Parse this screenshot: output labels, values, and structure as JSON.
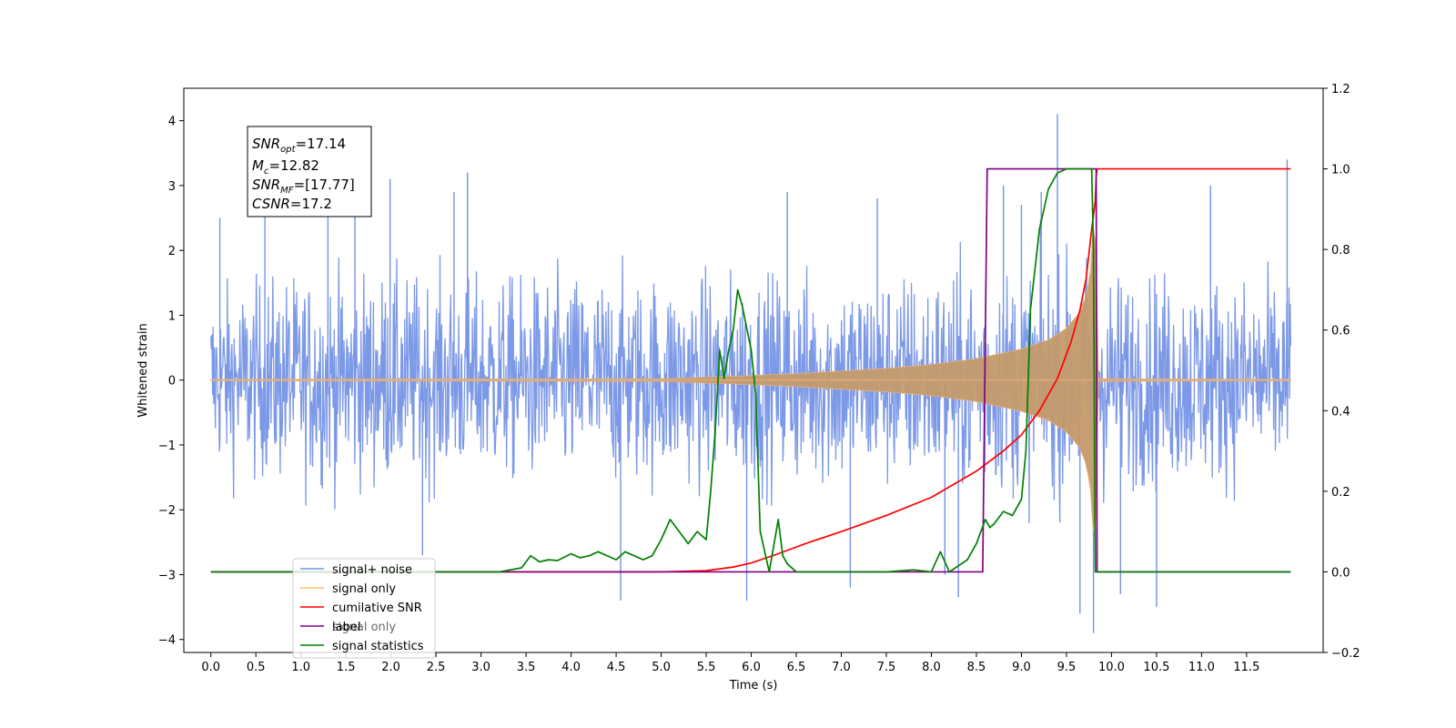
{
  "chart_data": {
    "type": "line",
    "xlabel": "Time (s)",
    "ylabel": "Whitened strain",
    "xlim": [
      -0.3,
      12.35
    ],
    "ylim": [
      -4.2,
      4.5
    ],
    "y2lim": [
      -0.2,
      1.2
    ],
    "xticks": [
      0.0,
      0.5,
      1.0,
      1.5,
      2.0,
      2.5,
      3.0,
      3.5,
      4.0,
      4.5,
      5.0,
      5.5,
      6.0,
      6.5,
      7.0,
      7.5,
      8.0,
      8.5,
      9.0,
      9.5,
      10.0,
      10.5,
      11.0,
      11.5
    ],
    "xtick_labels": [
      "0.0",
      "0.5",
      "1.0",
      "1.5",
      "2.0",
      "2.5",
      "3.0",
      "3.5",
      "4.0",
      "4.5",
      "5.0",
      "5.5",
      "6.0",
      "6.5",
      "7.0",
      "7.5",
      "8.0",
      "8.5",
      "9.0",
      "9.5",
      "10.0",
      "10.5",
      "11.0",
      "11.5"
    ],
    "yticks": [
      -4,
      -3,
      -2,
      -1,
      0,
      1,
      2,
      3,
      4
    ],
    "ytick_labels": [
      "−4",
      "−3",
      "−2",
      "−1",
      "0",
      "1",
      "2",
      "3",
      "4"
    ],
    "y2ticks": [
      -0.2,
      0.0,
      0.2,
      0.4,
      0.6,
      0.8,
      1.0,
      1.2
    ],
    "y2tick_labels": [
      "−0.2",
      "0.0",
      "0.2",
      "0.4",
      "0.6",
      "0.8",
      "1.0",
      "1.2"
    ],
    "grid": false,
    "legend_position": "lower-left",
    "annotation": {
      "lines": [
        {
          "sym": "SNR",
          "sub": "opt",
          "val": "=17.14"
        },
        {
          "sym": "M",
          "sub": "c",
          "val": "=12.82"
        },
        {
          "sym": "SNR",
          "sub": "MF",
          "val": "=[17.77]"
        },
        {
          "sym": "CSNR",
          "sub": "",
          "val": "=17.2"
        }
      ]
    },
    "series": [
      {
        "name": "signal+ noise",
        "axis": "left",
        "color": "#7593e6",
        "x_range": [
          0.0,
          11.99
        ],
        "noise_envelope": [
          [
            0.0,
            2.0
          ],
          [
            1.0,
            2.3
          ],
          [
            2.0,
            2.3
          ],
          [
            3.0,
            2.2
          ],
          [
            4.0,
            2.3
          ],
          [
            5.0,
            2.3
          ],
          [
            6.0,
            2.3
          ],
          [
            7.0,
            2.4
          ],
          [
            8.0,
            2.4
          ],
          [
            8.5,
            2.5
          ],
          [
            9.0,
            2.5
          ],
          [
            9.5,
            2.6
          ],
          [
            9.8,
            2.8
          ],
          [
            10.0,
            2.4
          ],
          [
            11.0,
            2.3
          ],
          [
            11.99,
            2.2
          ]
        ],
        "spikes": [
          [
            0.1,
            2.5
          ],
          [
            0.6,
            2.9
          ],
          [
            1.3,
            3.1
          ],
          [
            1.6,
            2.8
          ],
          [
            1.99,
            3.1
          ],
          [
            2.35,
            -2.7
          ],
          [
            2.7,
            2.9
          ],
          [
            2.85,
            3.2
          ],
          [
            4.55,
            -3.4
          ],
          [
            5.95,
            -3.4
          ],
          [
            6.4,
            2.9
          ],
          [
            7.1,
            -3.2
          ],
          [
            7.4,
            2.8
          ],
          [
            8.15,
            -3.0
          ],
          [
            8.3,
            -3.35
          ],
          [
            8.8,
            3.0
          ],
          [
            9.0,
            2.7
          ],
          [
            9.22,
            2.9
          ],
          [
            9.4,
            4.1
          ],
          [
            9.65,
            -3.6
          ],
          [
            9.8,
            -3.9
          ],
          [
            10.1,
            -3.3
          ],
          [
            10.5,
            -3.5
          ],
          [
            11.1,
            3.0
          ],
          [
            11.95,
            3.4
          ]
        ]
      },
      {
        "name": "signal only",
        "axis": "left",
        "color": "#e8b07a",
        "x_range": [
          0.0,
          11.99
        ],
        "envelope": [
          [
            0.0,
            0.01
          ],
          [
            5.0,
            0.02
          ],
          [
            6.0,
            0.07
          ],
          [
            6.5,
            0.1
          ],
          [
            7.0,
            0.14
          ],
          [
            7.5,
            0.18
          ],
          [
            8.0,
            0.24
          ],
          [
            8.5,
            0.33
          ],
          [
            9.0,
            0.48
          ],
          [
            9.3,
            0.62
          ],
          [
            9.5,
            0.8
          ],
          [
            9.65,
            1.05
          ],
          [
            9.72,
            1.3
          ],
          [
            9.78,
            1.8
          ],
          [
            9.82,
            3.1
          ],
          [
            9.84,
            0.02
          ],
          [
            11.99,
            0.01
          ]
        ]
      },
      {
        "name": "cumilative SNR",
        "axis": "right",
        "color": "#ff0000",
        "x": [
          0.0,
          5.0,
          5.5,
          5.8,
          6.0,
          6.3,
          6.6,
          7.0,
          7.5,
          8.0,
          8.5,
          8.8,
          9.0,
          9.2,
          9.4,
          9.55,
          9.65,
          9.72,
          9.78,
          9.82,
          9.83,
          9.84,
          11.99
        ],
        "y": [
          0.0,
          0.0,
          0.003,
          0.012,
          0.022,
          0.045,
          0.07,
          0.1,
          0.14,
          0.185,
          0.25,
          0.3,
          0.34,
          0.4,
          0.48,
          0.57,
          0.65,
          0.73,
          0.85,
          0.92,
          0.98,
          1.0,
          1.0
        ]
      },
      {
        "name": "label",
        "axis": "right",
        "color": "#800080",
        "x": [
          0.0,
          8.57,
          8.62,
          9.83,
          9.84,
          11.99
        ],
        "y": [
          0.0,
          0.0,
          1.0,
          1.0,
          0.0,
          0.0
        ]
      },
      {
        "name": "signal statistics",
        "axis": "right",
        "color": "#008000",
        "x": [
          0.0,
          3.2,
          3.45,
          3.55,
          3.65,
          3.75,
          3.85,
          4.0,
          4.1,
          4.2,
          4.3,
          4.5,
          4.6,
          4.7,
          4.8,
          4.9,
          5.0,
          5.1,
          5.2,
          5.3,
          5.4,
          5.5,
          5.55,
          5.6,
          5.65,
          5.7,
          5.75,
          5.8,
          5.85,
          5.9,
          6.0,
          6.05,
          6.1,
          6.15,
          6.2,
          6.3,
          6.35,
          6.4,
          6.5,
          6.6,
          6.7,
          7.5,
          7.8,
          8.0,
          8.1,
          8.2,
          8.4,
          8.5,
          8.6,
          8.65,
          8.7,
          8.8,
          8.9,
          9.0,
          9.05,
          9.1,
          9.2,
          9.3,
          9.4,
          9.5,
          9.6,
          9.7,
          9.78,
          9.8,
          9.82,
          11.99
        ],
        "y": [
          0.0,
          0.0,
          0.01,
          0.04,
          0.025,
          0.03,
          0.028,
          0.045,
          0.035,
          0.04,
          0.05,
          0.03,
          0.05,
          0.04,
          0.03,
          0.04,
          0.08,
          0.13,
          0.1,
          0.07,
          0.1,
          0.08,
          0.2,
          0.35,
          0.55,
          0.48,
          0.55,
          0.6,
          0.7,
          0.66,
          0.55,
          0.44,
          0.1,
          0.05,
          0.0,
          0.13,
          0.04,
          0.02,
          0.0,
          0.0,
          0.0,
          0.0,
          0.005,
          0.0,
          0.05,
          0.0,
          0.03,
          0.07,
          0.13,
          0.11,
          0.12,
          0.15,
          0.14,
          0.18,
          0.3,
          0.65,
          0.85,
          0.95,
          0.99,
          1.0,
          1.0,
          1.0,
          1.0,
          0.8,
          0.0,
          0.0
        ]
      }
    ],
    "legend_entries": [
      "signal+ noise",
      "signal only",
      "cumilative SNR",
      "label",
      "signal statistics"
    ],
    "legend_ghost_text": [
      "signal only"
    ]
  }
}
